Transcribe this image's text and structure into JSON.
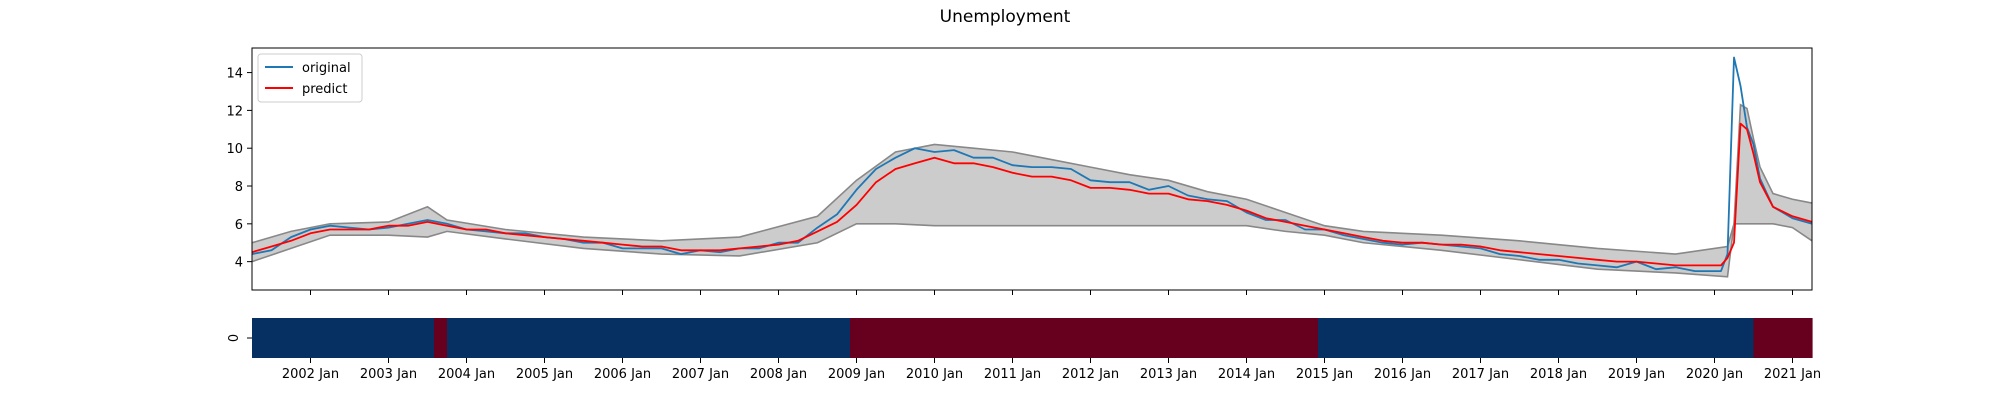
{
  "chart_data": [
    {
      "type": "line",
      "title": "Unemployment",
      "xlabel": "",
      "ylabel": "",
      "x_start": "2001-04",
      "x_end": "2021-04",
      "ylim": [
        2.5,
        15.3
      ],
      "yticks": [
        4,
        6,
        8,
        10,
        12,
        14
      ],
      "grid": false,
      "legend_position": "top-left",
      "series": [
        {
          "name": "original",
          "color": "#1f77b4",
          "points": [
            [
              "2001-04",
              4.4
            ],
            [
              "2001-07",
              4.6
            ],
            [
              "2001-10",
              5.3
            ],
            [
              "2002-01",
              5.7
            ],
            [
              "2002-04",
              5.9
            ],
            [
              "2002-07",
              5.8
            ],
            [
              "2002-10",
              5.7
            ],
            [
              "2003-01",
              5.8
            ],
            [
              "2003-04",
              6.0
            ],
            [
              "2003-07",
              6.2
            ],
            [
              "2003-10",
              6.0
            ],
            [
              "2004-01",
              5.7
            ],
            [
              "2004-04",
              5.6
            ],
            [
              "2004-07",
              5.5
            ],
            [
              "2004-10",
              5.5
            ],
            [
              "2005-01",
              5.3
            ],
            [
              "2005-04",
              5.2
            ],
            [
              "2005-07",
              5.0
            ],
            [
              "2005-10",
              5.0
            ],
            [
              "2006-01",
              4.7
            ],
            [
              "2006-04",
              4.7
            ],
            [
              "2006-07",
              4.7
            ],
            [
              "2006-10",
              4.4
            ],
            [
              "2007-01",
              4.6
            ],
            [
              "2007-04",
              4.5
            ],
            [
              "2007-07",
              4.7
            ],
            [
              "2007-10",
              4.7
            ],
            [
              "2008-01",
              5.0
            ],
            [
              "2008-04",
              5.0
            ],
            [
              "2008-07",
              5.8
            ],
            [
              "2008-10",
              6.5
            ],
            [
              "2009-01",
              7.8
            ],
            [
              "2009-04",
              8.9
            ],
            [
              "2009-07",
              9.5
            ],
            [
              "2009-10",
              10.0
            ],
            [
              "2010-01",
              9.8
            ],
            [
              "2010-04",
              9.9
            ],
            [
              "2010-07",
              9.5
            ],
            [
              "2010-10",
              9.5
            ],
            [
              "2011-01",
              9.1
            ],
            [
              "2011-04",
              9.0
            ],
            [
              "2011-07",
              9.0
            ],
            [
              "2011-10",
              8.9
            ],
            [
              "2012-01",
              8.3
            ],
            [
              "2012-04",
              8.2
            ],
            [
              "2012-07",
              8.2
            ],
            [
              "2012-10",
              7.8
            ],
            [
              "2013-01",
              8.0
            ],
            [
              "2013-04",
              7.5
            ],
            [
              "2013-07",
              7.3
            ],
            [
              "2013-10",
              7.2
            ],
            [
              "2014-01",
              6.6
            ],
            [
              "2014-04",
              6.2
            ],
            [
              "2014-07",
              6.2
            ],
            [
              "2014-10",
              5.7
            ],
            [
              "2015-01",
              5.7
            ],
            [
              "2015-04",
              5.4
            ],
            [
              "2015-07",
              5.2
            ],
            [
              "2015-10",
              5.0
            ],
            [
              "2016-01",
              4.9
            ],
            [
              "2016-04",
              5.0
            ],
            [
              "2016-07",
              4.9
            ],
            [
              "2016-10",
              4.8
            ],
            [
              "2017-01",
              4.7
            ],
            [
              "2017-04",
              4.4
            ],
            [
              "2017-07",
              4.3
            ],
            [
              "2017-10",
              4.1
            ],
            [
              "2018-01",
              4.1
            ],
            [
              "2018-04",
              3.9
            ],
            [
              "2018-07",
              3.8
            ],
            [
              "2018-10",
              3.7
            ],
            [
              "2019-01",
              4.0
            ],
            [
              "2019-04",
              3.6
            ],
            [
              "2019-07",
              3.7
            ],
            [
              "2019-10",
              3.5
            ],
            [
              "2020-01",
              3.5
            ],
            [
              "2020-02",
              3.5
            ],
            [
              "2020-03",
              4.4
            ],
            [
              "2020-04",
              14.8
            ],
            [
              "2020-05",
              13.3
            ],
            [
              "2020-06",
              11.1
            ],
            [
              "2020-07",
              10.2
            ],
            [
              "2020-08",
              8.4
            ],
            [
              "2020-10",
              6.9
            ],
            [
              "2021-01",
              6.3
            ],
            [
              "2021-04",
              6.0
            ]
          ]
        },
        {
          "name": "predict",
          "color": "#ff0000",
          "points": [
            [
              "2001-04",
              4.5
            ],
            [
              "2001-07",
              4.8
            ],
            [
              "2001-10",
              5.1
            ],
            [
              "2002-01",
              5.5
            ],
            [
              "2002-04",
              5.7
            ],
            [
              "2002-07",
              5.7
            ],
            [
              "2002-10",
              5.7
            ],
            [
              "2003-01",
              5.9
            ],
            [
              "2003-04",
              5.9
            ],
            [
              "2003-07",
              6.1
            ],
            [
              "2003-10",
              5.9
            ],
            [
              "2004-01",
              5.7
            ],
            [
              "2004-04",
              5.7
            ],
            [
              "2004-07",
              5.5
            ],
            [
              "2004-10",
              5.4
            ],
            [
              "2005-01",
              5.3
            ],
            [
              "2005-04",
              5.2
            ],
            [
              "2005-07",
              5.1
            ],
            [
              "2005-10",
              5.0
            ],
            [
              "2006-01",
              4.9
            ],
            [
              "2006-04",
              4.8
            ],
            [
              "2006-07",
              4.8
            ],
            [
              "2006-10",
              4.6
            ],
            [
              "2007-01",
              4.6
            ],
            [
              "2007-04",
              4.6
            ],
            [
              "2007-07",
              4.7
            ],
            [
              "2007-10",
              4.8
            ],
            [
              "2008-01",
              4.9
            ],
            [
              "2008-04",
              5.1
            ],
            [
              "2008-07",
              5.6
            ],
            [
              "2008-10",
              6.1
            ],
            [
              "2009-01",
              7.0
            ],
            [
              "2009-04",
              8.2
            ],
            [
              "2009-07",
              8.9
            ],
            [
              "2009-10",
              9.2
            ],
            [
              "2010-01",
              9.5
            ],
            [
              "2010-04",
              9.2
            ],
            [
              "2010-07",
              9.2
            ],
            [
              "2010-10",
              9.0
            ],
            [
              "2011-01",
              8.7
            ],
            [
              "2011-04",
              8.5
            ],
            [
              "2011-07",
              8.5
            ],
            [
              "2011-10",
              8.3
            ],
            [
              "2012-01",
              7.9
            ],
            [
              "2012-04",
              7.9
            ],
            [
              "2012-07",
              7.8
            ],
            [
              "2012-10",
              7.6
            ],
            [
              "2013-01",
              7.6
            ],
            [
              "2013-04",
              7.3
            ],
            [
              "2013-07",
              7.2
            ],
            [
              "2013-10",
              7.0
            ],
            [
              "2014-01",
              6.7
            ],
            [
              "2014-04",
              6.3
            ],
            [
              "2014-07",
              6.1
            ],
            [
              "2014-10",
              5.9
            ],
            [
              "2015-01",
              5.7
            ],
            [
              "2015-04",
              5.5
            ],
            [
              "2015-07",
              5.3
            ],
            [
              "2015-10",
              5.1
            ],
            [
              "2016-01",
              5.0
            ],
            [
              "2016-04",
              5.0
            ],
            [
              "2016-07",
              4.9
            ],
            [
              "2016-10",
              4.9
            ],
            [
              "2017-01",
              4.8
            ],
            [
              "2017-04",
              4.6
            ],
            [
              "2017-07",
              4.5
            ],
            [
              "2017-10",
              4.4
            ],
            [
              "2018-01",
              4.3
            ],
            [
              "2018-04",
              4.2
            ],
            [
              "2018-07",
              4.1
            ],
            [
              "2018-10",
              4.0
            ],
            [
              "2019-01",
              4.0
            ],
            [
              "2019-04",
              3.9
            ],
            [
              "2019-07",
              3.8
            ],
            [
              "2019-10",
              3.8
            ],
            [
              "2020-01",
              3.8
            ],
            [
              "2020-02",
              3.8
            ],
            [
              "2020-03",
              4.2
            ],
            [
              "2020-04",
              5.0
            ],
            [
              "2020-05",
              11.3
            ],
            [
              "2020-06",
              11.0
            ],
            [
              "2020-07",
              9.7
            ],
            [
              "2020-08",
              8.2
            ],
            [
              "2020-10",
              6.9
            ],
            [
              "2021-01",
              6.4
            ],
            [
              "2021-04",
              6.1
            ]
          ]
        }
      ],
      "interval": {
        "name": "",
        "fill_color": "#cccccc",
        "edge_color": "#888888",
        "upper": [
          [
            "2001-04",
            5.0
          ],
          [
            "2001-10",
            5.6
          ],
          [
            "2002-04",
            6.0
          ],
          [
            "2003-01",
            6.1
          ],
          [
            "2003-07",
            6.9
          ],
          [
            "2003-10",
            6.2
          ],
          [
            "2004-07",
            5.7
          ],
          [
            "2005-07",
            5.3
          ],
          [
            "2006-07",
            5.1
          ],
          [
            "2007-07",
            5.3
          ],
          [
            "2008-07",
            6.4
          ],
          [
            "2009-01",
            8.3
          ],
          [
            "2009-07",
            9.8
          ],
          [
            "2010-01",
            10.2
          ],
          [
            "2010-07",
            10.0
          ],
          [
            "2011-01",
            9.8
          ],
          [
            "2011-07",
            9.4
          ],
          [
            "2012-01",
            9.0
          ],
          [
            "2012-07",
            8.6
          ],
          [
            "2013-01",
            8.3
          ],
          [
            "2013-07",
            7.7
          ],
          [
            "2014-01",
            7.3
          ],
          [
            "2014-07",
            6.6
          ],
          [
            "2015-01",
            5.9
          ],
          [
            "2015-07",
            5.6
          ],
          [
            "2016-07",
            5.4
          ],
          [
            "2017-07",
            5.1
          ],
          [
            "2018-07",
            4.7
          ],
          [
            "2019-07",
            4.4
          ],
          [
            "2020-03",
            4.8
          ],
          [
            "2020-04",
            6.0
          ],
          [
            "2020-05",
            12.3
          ],
          [
            "2020-06",
            12.1
          ],
          [
            "2020-07",
            10.5
          ],
          [
            "2020-08",
            9.0
          ],
          [
            "2020-10",
            7.6
          ],
          [
            "2021-01",
            7.3
          ],
          [
            "2021-04",
            7.1
          ]
        ],
        "lower": [
          [
            "2001-04",
            4.0
          ],
          [
            "2001-10",
            4.7
          ],
          [
            "2002-04",
            5.4
          ],
          [
            "2003-01",
            5.4
          ],
          [
            "2003-07",
            5.3
          ],
          [
            "2003-10",
            5.6
          ],
          [
            "2004-07",
            5.2
          ],
          [
            "2005-07",
            4.7
          ],
          [
            "2006-07",
            4.4
          ],
          [
            "2007-07",
            4.3
          ],
          [
            "2008-07",
            5.0
          ],
          [
            "2009-01",
            6.0
          ],
          [
            "2009-07",
            6.0
          ],
          [
            "2010-01",
            5.9
          ],
          [
            "2010-07",
            5.9
          ],
          [
            "2011-01",
            5.9
          ],
          [
            "2011-07",
            5.9
          ],
          [
            "2012-01",
            5.9
          ],
          [
            "2012-07",
            5.9
          ],
          [
            "2013-01",
            5.9
          ],
          [
            "2013-07",
            5.9
          ],
          [
            "2014-01",
            5.9
          ],
          [
            "2014-07",
            5.6
          ],
          [
            "2015-01",
            5.4
          ],
          [
            "2015-07",
            5.0
          ],
          [
            "2016-07",
            4.6
          ],
          [
            "2017-07",
            4.1
          ],
          [
            "2018-07",
            3.6
          ],
          [
            "2019-07",
            3.4
          ],
          [
            "2020-03",
            3.2
          ],
          [
            "2020-04",
            6.0
          ],
          [
            "2020-05",
            6.0
          ],
          [
            "2020-06",
            6.0
          ],
          [
            "2020-07",
            6.0
          ],
          [
            "2020-08",
            6.0
          ],
          [
            "2020-10",
            6.0
          ],
          [
            "2021-01",
            5.8
          ],
          [
            "2021-04",
            5.1
          ]
        ]
      }
    },
    {
      "type": "heatmap",
      "ylabel": "0",
      "x_start": "2001-04",
      "x_end": "2021-04",
      "color_low": "#053061",
      "color_high": "#67001f",
      "segments": [
        {
          "start": "2001-04",
          "end": "2003-08",
          "state": "low"
        },
        {
          "start": "2003-08",
          "end": "2003-10",
          "state": "high"
        },
        {
          "start": "2003-10",
          "end": "2008-12",
          "state": "low"
        },
        {
          "start": "2008-12",
          "end": "2014-12",
          "state": "high"
        },
        {
          "start": "2014-12",
          "end": "2020-07",
          "state": "low"
        },
        {
          "start": "2020-07",
          "end": "2021-04",
          "state": "high"
        }
      ],
      "xticks": [
        "2002 Jan",
        "2003 Jan",
        "2004 Jan",
        "2005 Jan",
        "2006 Jan",
        "2007 Jan",
        "2008 Jan",
        "2009 Jan",
        "2010 Jan",
        "2011 Jan",
        "2012 Jan",
        "2013 Jan",
        "2014 Jan",
        "2015 Jan",
        "2016 Jan",
        "2017 Jan",
        "2018 Jan",
        "2019 Jan",
        "2020 Jan",
        "2021 Jan"
      ]
    }
  ]
}
